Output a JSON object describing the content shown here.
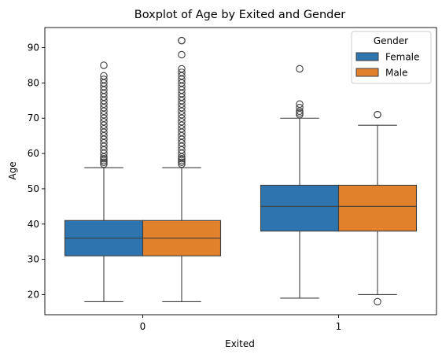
{
  "chart_data": {
    "type": "boxplot",
    "title": "Boxplot of Age by Exited and Gender",
    "xlabel": "Exited",
    "ylabel": "Age",
    "categories": [
      "0",
      "1"
    ],
    "yticks": [
      20,
      30,
      40,
      50,
      60,
      70,
      80,
      90
    ],
    "ylim": [
      14.3,
      95.7
    ],
    "grid": false,
    "legend": {
      "title": "Gender",
      "placement": "top-right"
    },
    "series": [
      {
        "name": "Female",
        "color": "#2e75b0",
        "boxes": [
          {
            "category": "0",
            "whisker_low": 18,
            "q1": 31,
            "median": 36,
            "q3": 41,
            "whisker_high": 56,
            "outliers": [
              57,
              57.5,
              58,
              58.5,
              59,
              60,
              61,
              62,
              63,
              64,
              65,
              66,
              67,
              68,
              69,
              70,
              71,
              72,
              73,
              74,
              75,
              76,
              77,
              78,
              79,
              80,
              81,
              82,
              85
            ]
          },
          {
            "category": "1",
            "whisker_low": 19,
            "q1": 38,
            "median": 45,
            "q3": 51,
            "whisker_high": 70,
            "outliers": [
              71,
              71.5,
              72,
              73,
              74,
              84
            ]
          }
        ]
      },
      {
        "name": "Male",
        "color": "#e1812c",
        "boxes": [
          {
            "category": "0",
            "whisker_low": 18,
            "q1": 31,
            "median": 36,
            "q3": 41,
            "whisker_high": 56,
            "outliers": [
              57,
              57.5,
              58,
              58.5,
              59,
              60,
              61,
              62,
              63,
              64,
              65,
              66,
              67,
              68,
              69,
              70,
              71,
              72,
              73,
              74,
              75,
              76,
              77,
              78,
              79,
              80,
              81,
              82,
              83,
              84,
              88,
              92,
              92
            ]
          },
          {
            "category": "1",
            "whisker_low": 20,
            "q1": 38,
            "median": 45,
            "q3": 51,
            "whisker_high": 68,
            "outliers": [
              71,
              71,
              18
            ]
          }
        ]
      }
    ]
  }
}
